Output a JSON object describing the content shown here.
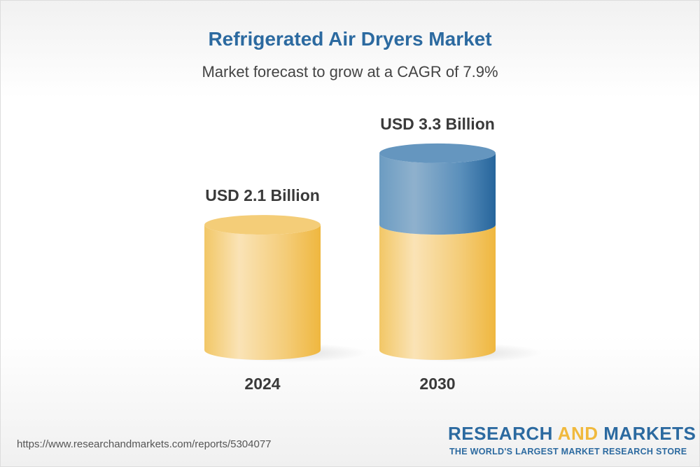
{
  "title": "Refrigerated Air Dryers Market",
  "subtitle": "Market forecast to grow at a CAGR of 7.9%",
  "footer": {
    "url": "https://www.researchandmarkets.com/reports/5304077",
    "logo_line1_a": "RESEARCH ",
    "logo_line1_b": "AND",
    "logo_line1_c": " MARKETS",
    "logo_line2": "THE WORLD'S LARGEST MARKET RESEARCH STORE"
  },
  "colors": {
    "base": "#f0b93d",
    "growth": "#2c6aa0",
    "title": "#2c6aa0"
  },
  "chart_data": {
    "type": "bar",
    "style": "3d-cylinder",
    "categories": [
      "2024",
      "2030"
    ],
    "values": [
      2.1,
      3.3
    ],
    "value_labels": [
      "USD 2.1 Billion",
      "USD 3.3 Billion"
    ],
    "unit": "USD Billion",
    "title": "Refrigerated Air Dryers Market",
    "subtitle": "Market forecast to grow at a CAGR of 7.9%",
    "cagr": "7.9%",
    "grid": false
  }
}
